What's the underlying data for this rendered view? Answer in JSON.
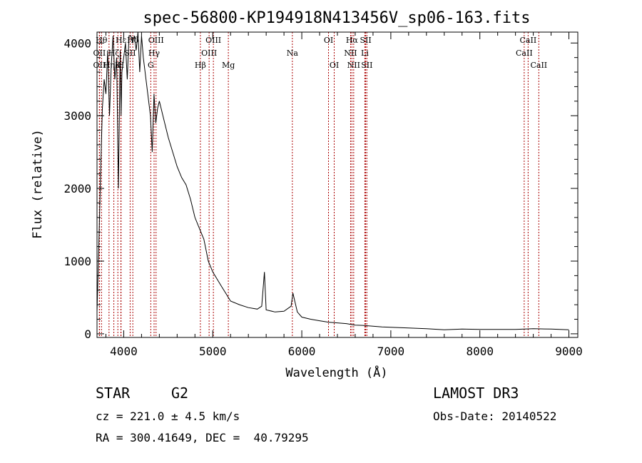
{
  "chart_data": {
    "type": "line",
    "title": "spec-56800-KP194918N413456V_sp06-163.fits",
    "xlabel": "Wavelength (Å)",
    "ylabel": "Flux (relative)",
    "xlim": [
      3700,
      9100
    ],
    "ylim": [
      -50,
      4150
    ],
    "x_ticks": [
      4000,
      5000,
      6000,
      7000,
      8000,
      9000
    ],
    "y_ticks": [
      0,
      1000,
      2000,
      3000,
      4000
    ],
    "x_tick_labels": [
      "4000",
      "5000",
      "6000",
      "7000",
      "8000",
      "9000"
    ],
    "y_tick_labels": [
      "0",
      "1000",
      "2000",
      "3000",
      "4000"
    ],
    "color": "#000000",
    "line_color": "#aa0000",
    "series": [
      {
        "name": "flux",
        "x": [
          3700,
          3720,
          3740,
          3760,
          3780,
          3800,
          3820,
          3840,
          3860,
          3880,
          3900,
          3920,
          3940,
          3960,
          3970,
          3980,
          4000,
          4020,
          4040,
          4060,
          4080,
          4100,
          4120,
          4140,
          4160,
          4180,
          4200,
          4220,
          4240,
          4260,
          4280,
          4300,
          4320,
          4340,
          4360,
          4380,
          4400,
          4450,
          4500,
          4550,
          4600,
          4650,
          4700,
          4750,
          4800,
          4850,
          4900,
          4950,
          5000,
          5050,
          5100,
          5150,
          5200,
          5300,
          5400,
          5500,
          5550,
          5580,
          5600,
          5700,
          5800,
          5880,
          5900,
          5950,
          6000,
          6100,
          6200,
          6300,
          6400,
          6500,
          6600,
          6700,
          6800,
          6900,
          7000,
          7200,
          7400,
          7600,
          7700,
          7800,
          8000,
          8200,
          8400,
          8600,
          8800,
          9000
        ],
        "y": [
          300,
          1200,
          2200,
          3100,
          3500,
          3300,
          3900,
          3000,
          3700,
          4100,
          3500,
          3800,
          2000,
          3900,
          3000,
          3600,
          3800,
          4000,
          3500,
          4100,
          4100,
          4000,
          4100,
          3900,
          4150,
          3600,
          4100,
          3800,
          3600,
          3400,
          3200,
          3000,
          2500,
          3300,
          2900,
          3100,
          3200,
          2950,
          2700,
          2500,
          2300,
          2150,
          2050,
          1850,
          1600,
          1450,
          1300,
          1000,
          850,
          750,
          650,
          550,
          450,
          400,
          360,
          340,
          380,
          850,
          330,
          300,
          310,
          380,
          560,
          300,
          230,
          200,
          180,
          160,
          150,
          140,
          120,
          115,
          105,
          95,
          90,
          80,
          70,
          55,
          60,
          65,
          60,
          60,
          60,
          70,
          65,
          55
        ]
      }
    ],
    "lines": [
      {
        "name": "OII",
        "wl": 3727,
        "row": 2
      },
      {
        "name": "OII",
        "wl": 3727,
        "row": 1
      },
      {
        "name": "Hθ",
        "wl": 3750,
        "row": 0
      },
      {
        "name": "Hη",
        "wl": 3835,
        "row": 2
      },
      {
        "name": "Hζ",
        "wl": 3889,
        "row": 1
      },
      {
        "name": "Hε",
        "wl": 3970,
        "row": 0
      },
      {
        "name": "K",
        "wl": 3934,
        "row": 2
      },
      {
        "name": "H",
        "wl": 3968,
        "row": 2
      },
      {
        "name": "SII",
        "wl": 4072,
        "row": 1
      },
      {
        "name": "Hδ",
        "wl": 4102,
        "row": 0
      },
      {
        "name": "G",
        "wl": 4304,
        "row": 2
      },
      {
        "name": "Hγ",
        "wl": 4341,
        "row": 1
      },
      {
        "name": "OIII",
        "wl": 4363,
        "row": 0
      },
      {
        "name": "Hβ",
        "wl": 4861,
        "row": 2
      },
      {
        "name": "OIII",
        "wl": 4959,
        "row": 1
      },
      {
        "name": "OIII",
        "wl": 5007,
        "row": 0
      },
      {
        "name": "Mg",
        "wl": 5175,
        "row": 2
      },
      {
        "name": "Na",
        "wl": 5894,
        "row": 1
      },
      {
        "name": "OI",
        "wl": 6300,
        "row": 0
      },
      {
        "name": "OI",
        "wl": 6364,
        "row": 2
      },
      {
        "name": "NII",
        "wl": 6548,
        "row": 1
      },
      {
        "name": "Hα",
        "wl": 6563,
        "row": 0
      },
      {
        "name": "NII",
        "wl": 6583,
        "row": 2
      },
      {
        "name": "Li",
        "wl": 6708,
        "row": 1
      },
      {
        "name": "SII",
        "wl": 6717,
        "row": 0
      },
      {
        "name": "SII",
        "wl": 6731,
        "row": 2
      },
      {
        "name": "CaII",
        "wl": 8498,
        "row": 1
      },
      {
        "name": "CaII",
        "wl": 8542,
        "row": 0
      },
      {
        "name": "CaII",
        "wl": 8662,
        "row": 2
      }
    ]
  },
  "info": {
    "class_label": "STAR",
    "subclass_label": "G2",
    "survey": "LAMOST DR3",
    "redshift": "cz = 221.0 ± 4.5 km/s",
    "obs_date": "Obs-Date: 20140522",
    "coords": "RA = 300.41649, DEC =  40.79295"
  }
}
